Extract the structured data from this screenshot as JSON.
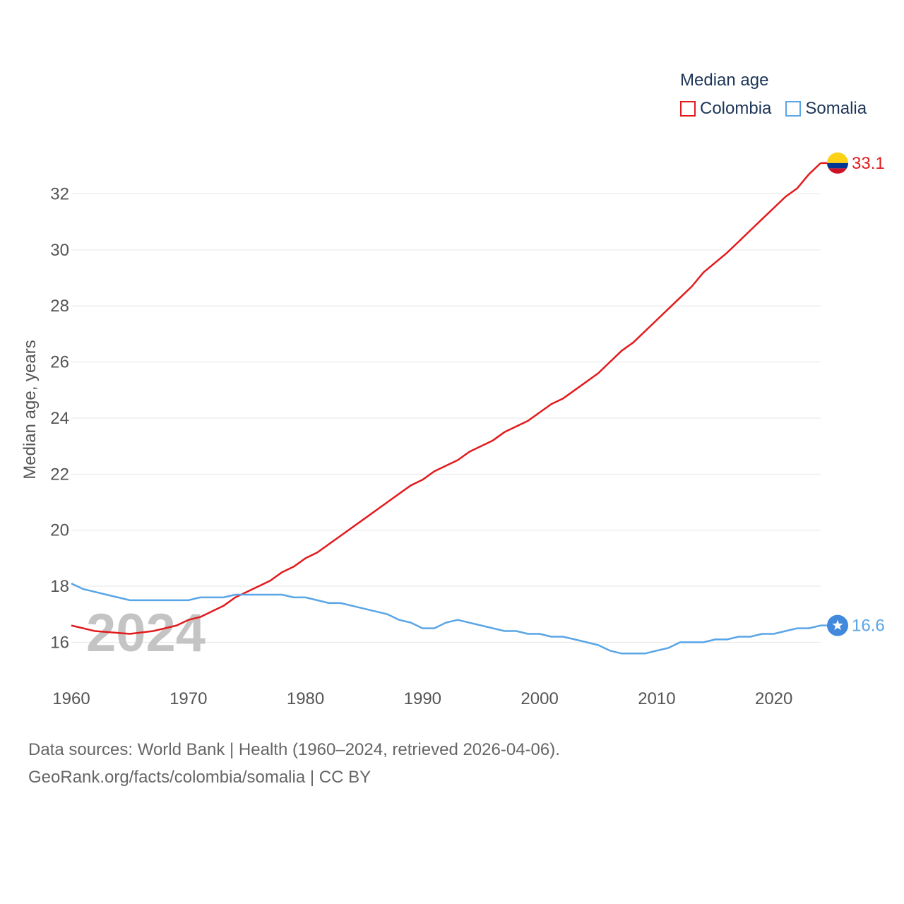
{
  "chart_data": {
    "type": "line",
    "legend_title": "Median age",
    "ylabel": "Median age, years",
    "xlabel": "",
    "x_range": [
      1960,
      2024
    ],
    "ylim": [
      14.7,
      33.5
    ],
    "x_ticks": [
      1960,
      1970,
      1980,
      1990,
      2000,
      2010,
      2020
    ],
    "y_ticks": [
      16,
      18,
      20,
      22,
      24,
      26,
      28,
      30,
      32
    ],
    "year_watermark": "2024",
    "legend_placement": "top-right",
    "series": [
      {
        "name": "Colombia",
        "color": "#e31a1c",
        "end_label": "33.1",
        "flag_icon": "colombia-flag-icon",
        "x": [
          1960,
          1962,
          1965,
          1967,
          1969,
          1970,
          1971,
          1973,
          1974,
          1975,
          1977,
          1978,
          1979,
          1980,
          1981,
          1983,
          1985,
          1987,
          1989,
          1990,
          1991,
          1993,
          1994,
          1996,
          1997,
          1999,
          2001,
          2002,
          2003,
          2005,
          2007,
          2008,
          2010,
          2012,
          2013,
          2014,
          2016,
          2017,
          2018,
          2019,
          2020,
          2021,
          2022,
          2023,
          2024
        ],
        "values": [
          16.6,
          16.4,
          16.3,
          16.4,
          16.6,
          16.8,
          16.9,
          17.3,
          17.6,
          17.8,
          18.2,
          18.5,
          18.7,
          19.0,
          19.2,
          19.8,
          20.4,
          21.0,
          21.6,
          21.8,
          22.1,
          22.5,
          22.8,
          23.2,
          23.5,
          23.9,
          24.5,
          24.7,
          25.0,
          25.6,
          26.4,
          26.7,
          27.5,
          28.3,
          28.7,
          29.2,
          29.9,
          30.3,
          30.7,
          31.1,
          31.5,
          31.9,
          32.2,
          32.7,
          33.1
        ]
      },
      {
        "name": "Somalia",
        "color": "#5aa5e6",
        "end_label": "16.6",
        "flag_icon": "somalia-flag-icon",
        "x": [
          1960,
          1961,
          1963,
          1965,
          1970,
          1971,
          1973,
          1974,
          1978,
          1979,
          1980,
          1982,
          1983,
          1985,
          1987,
          1988,
          1989,
          1990,
          1991,
          1992,
          1993,
          1995,
          1997,
          1998,
          1999,
          2000,
          2001,
          2002,
          2003,
          2005,
          2006,
          2007,
          2009,
          2010,
          2011,
          2012,
          2013,
          2014,
          2015,
          2016,
          2017,
          2018,
          2019,
          2020,
          2021,
          2022,
          2023,
          2024
        ],
        "values": [
          18.1,
          17.9,
          17.7,
          17.5,
          17.5,
          17.6,
          17.6,
          17.7,
          17.7,
          17.6,
          17.6,
          17.4,
          17.4,
          17.2,
          17.0,
          16.8,
          16.7,
          16.5,
          16.5,
          16.7,
          16.8,
          16.6,
          16.4,
          16.4,
          16.3,
          16.3,
          16.2,
          16.2,
          16.1,
          15.9,
          15.7,
          15.6,
          15.6,
          15.7,
          15.8,
          16.0,
          16.0,
          16.0,
          16.1,
          16.1,
          16.2,
          16.2,
          16.3,
          16.3,
          16.4,
          16.5,
          16.5,
          16.6
        ]
      }
    ]
  },
  "footer": {
    "line1": "Data sources: World Bank | Health (1960–2024, retrieved 2026-04-06).",
    "line2": "GeoRank.org/facts/colombia/somalia | CC BY"
  }
}
